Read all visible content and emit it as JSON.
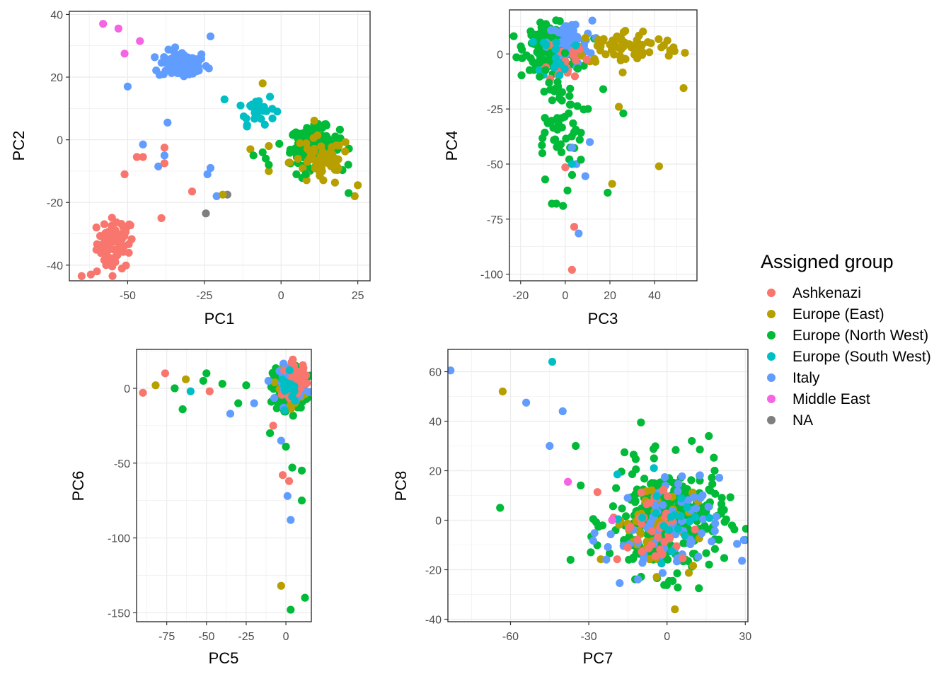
{
  "chart_data": [
    {
      "type": "scatter",
      "xlabel": "PC1",
      "ylabel": "PC2",
      "xlim": [
        -69,
        29
      ],
      "ylim": [
        -45,
        41
      ],
      "xticks": [
        -50,
        -25,
        0,
        25
      ],
      "yticks": [
        -40,
        -20,
        0,
        20,
        40
      ],
      "grid": true,
      "clusters": [
        {
          "group": "Ashkenazi",
          "cx": -54,
          "cy": -33,
          "sx": 3,
          "sy": 4,
          "n": 70
        },
        {
          "group": "Italy",
          "cx": -32,
          "cy": 24,
          "sx": 4,
          "sy": 2.2,
          "n": 90
        },
        {
          "group": "Europe (South West)",
          "cx": -8,
          "cy": 10,
          "sx": 3,
          "sy": 2.5,
          "n": 30
        },
        {
          "group": "Europe (North West)",
          "cx": 11,
          "cy": -2,
          "sx": 4,
          "sy": 3,
          "n": 160
        },
        {
          "group": "Europe (East)",
          "cx": 13,
          "cy": -7,
          "sx": 5,
          "sy": 4,
          "n": 60
        }
      ],
      "points": [
        {
          "group": "Middle East",
          "x": -58,
          "y": 37
        },
        {
          "group": "Middle East",
          "x": -53,
          "y": 35.5
        },
        {
          "group": "Middle East",
          "x": -46,
          "y": 31.5
        },
        {
          "group": "Middle East",
          "x": -51,
          "y": 27.5
        },
        {
          "group": "Italy",
          "x": -50,
          "y": 17
        },
        {
          "group": "Italy",
          "x": -37,
          "y": 5.5
        },
        {
          "group": "Italy",
          "x": -45,
          "y": -1.5
        },
        {
          "group": "Italy",
          "x": -40,
          "y": -8.5
        },
        {
          "group": "Italy",
          "x": -38,
          "y": -5
        },
        {
          "group": "Italy",
          "x": -23,
          "y": -9
        },
        {
          "group": "Italy",
          "x": -24,
          "y": -11
        },
        {
          "group": "Italy",
          "x": -21,
          "y": -18
        },
        {
          "group": "Italy",
          "x": -23,
          "y": 33
        },
        {
          "group": "Ashkenazi",
          "x": -47,
          "y": -5.5
        },
        {
          "group": "Ashkenazi",
          "x": -45,
          "y": -5.5
        },
        {
          "group": "Ashkenazi",
          "x": -38,
          "y": -2.5
        },
        {
          "group": "Ashkenazi",
          "x": -38,
          "y": -7.5
        },
        {
          "group": "Ashkenazi",
          "x": -51,
          "y": -11
        },
        {
          "group": "Ashkenazi",
          "x": -39,
          "y": -25
        },
        {
          "group": "Ashkenazi",
          "x": -29,
          "y": -16.5
        },
        {
          "group": "Ashkenazi",
          "x": -65,
          "y": -43.5
        },
        {
          "group": "Ashkenazi",
          "x": -62,
          "y": -43
        },
        {
          "group": "Ashkenazi",
          "x": -60,
          "y": -42
        },
        {
          "group": "Ashkenazi",
          "x": -57,
          "y": -40
        },
        {
          "group": "NA",
          "x": -17.5,
          "y": -17.5
        },
        {
          "group": "NA",
          "x": -24.5,
          "y": -23.5
        },
        {
          "group": "Europe (East)",
          "x": -19,
          "y": -17.5
        },
        {
          "group": "Europe (East)",
          "x": -6,
          "y": 18
        },
        {
          "group": "Europe (East)",
          "x": -10,
          "y": -3
        },
        {
          "group": "Europe (East)",
          "x": -4,
          "y": -2
        },
        {
          "group": "Europe (East)",
          "x": -4,
          "y": -10
        },
        {
          "group": "Europe (East)",
          "x": 24,
          "y": -18
        },
        {
          "group": "Europe (East)",
          "x": 25,
          "y": -14.5
        },
        {
          "group": "Europe (North West)",
          "x": -9,
          "y": -5
        },
        {
          "group": "Europe (North West)",
          "x": -6,
          "y": -4
        },
        {
          "group": "Europe (North West)",
          "x": -5,
          "y": -6
        },
        {
          "group": "Europe (North West)",
          "x": -4,
          "y": -8
        },
        {
          "group": "Europe (North West)",
          "x": 5,
          "y": -11
        },
        {
          "group": "Europe (North West)",
          "x": 8,
          "y": -11
        },
        {
          "group": "Europe (North West)",
          "x": 22,
          "y": -17
        }
      ]
    },
    {
      "type": "scatter",
      "xlabel": "PC3",
      "ylabel": "PC4",
      "xlim": [
        -25,
        59
      ],
      "ylim": [
        -103,
        20
      ],
      "xticks": [
        -20,
        0,
        20,
        40
      ],
      "yticks": [
        -100,
        -75,
        -50,
        -25,
        0
      ],
      "grid": true,
      "clusters": [
        {
          "group": "Europe (North West)",
          "cx": -6,
          "cy": 3,
          "sx": 6,
          "sy": 5,
          "n": 150
        },
        {
          "group": "Italy",
          "cx": 2,
          "cy": 5,
          "sx": 5,
          "sy": 5,
          "n": 50
        },
        {
          "group": "Europe (East)",
          "cx": 28,
          "cy": 3,
          "sx": 12,
          "sy": 4,
          "n": 80
        },
        {
          "group": "Ashkenazi",
          "cx": 0,
          "cy": -3,
          "sx": 4,
          "sy": 5,
          "n": 20
        },
        {
          "group": "Europe (South West)",
          "cx": -4,
          "cy": 0,
          "sx": 4,
          "sy": 5,
          "n": 15
        },
        {
          "group": "Europe (North West)",
          "cx": -4,
          "cy": -30,
          "sx": 6,
          "sy": 13,
          "n": 55
        }
      ],
      "points": [
        {
          "group": "Ashkenazi",
          "x": 0,
          "y": -51.5
        },
        {
          "group": "Ashkenazi",
          "x": 4,
          "y": -78.5
        },
        {
          "group": "Ashkenazi",
          "x": 3,
          "y": -98
        },
        {
          "group": "Italy",
          "x": 6,
          "y": -81.5
        },
        {
          "group": "Italy",
          "x": 3,
          "y": -42.5
        },
        {
          "group": "Italy",
          "x": 11,
          "y": -40
        },
        {
          "group": "Italy",
          "x": 9,
          "y": -55.5
        },
        {
          "group": "Italy",
          "x": 5,
          "y": -50
        },
        {
          "group": "Europe (South West)",
          "x": 3,
          "y": -50
        },
        {
          "group": "Europe (East)",
          "x": 42,
          "y": -51
        },
        {
          "group": "Europe (East)",
          "x": 53,
          "y": -15.5
        },
        {
          "group": "Europe (East)",
          "x": 21,
          "y": -59
        },
        {
          "group": "Europe (East)",
          "x": 24,
          "y": -24
        },
        {
          "group": "Europe (North West)",
          "x": 19,
          "y": -63
        },
        {
          "group": "Europe (North West)",
          "x": 26,
          "y": -27
        },
        {
          "group": "Europe (North West)",
          "x": -6,
          "y": -68
        },
        {
          "group": "Europe (North West)",
          "x": -4,
          "y": -68
        },
        {
          "group": "Europe (North West)",
          "x": -1,
          "y": -69
        },
        {
          "group": "Europe (North West)",
          "x": -9,
          "y": -57
        },
        {
          "group": "Europe (North West)",
          "x": 1,
          "y": -62
        },
        {
          "group": "Europe (North West)",
          "x": 7,
          "y": -48
        },
        {
          "group": "Europe (North West)",
          "x": 17,
          "y": -16
        }
      ]
    },
    {
      "type": "scatter",
      "xlabel": "PC5",
      "ylabel": "PC6",
      "xlim": [
        -94,
        16
      ],
      "ylim": [
        -156,
        26
      ],
      "xticks": [
        -75,
        -50,
        -25,
        0
      ],
      "yticks": [
        -150,
        -100,
        -50,
        0
      ],
      "grid": true,
      "clusters": [
        {
          "group": "Europe (North West)",
          "cx": 2,
          "cy": 0,
          "sx": 5,
          "sy": 7,
          "n": 200
        },
        {
          "group": "Europe (East)",
          "cx": 5,
          "cy": 2,
          "sx": 4,
          "sy": 5,
          "n": 60
        },
        {
          "group": "Italy",
          "cx": 4,
          "cy": 4,
          "sx": 4,
          "sy": 6,
          "n": 50
        },
        {
          "group": "Ashkenazi",
          "cx": 6,
          "cy": 6,
          "sx": 4,
          "sy": 6,
          "n": 30
        },
        {
          "group": "Europe (South West)",
          "cx": 3,
          "cy": 0,
          "sx": 3,
          "sy": 5,
          "n": 15
        }
      ],
      "points": [
        {
          "group": "Ashkenazi",
          "x": -90,
          "y": -3
        },
        {
          "group": "Ashkenazi",
          "x": -76,
          "y": 10
        },
        {
          "group": "Ashkenazi",
          "x": -48,
          "y": -2
        },
        {
          "group": "Ashkenazi",
          "x": -8,
          "y": -25
        },
        {
          "group": "Ashkenazi",
          "x": -2,
          "y": -58
        },
        {
          "group": "Ashkenazi",
          "x": 2,
          "y": -62
        },
        {
          "group": "Europe (East)",
          "x": -82,
          "y": 2
        },
        {
          "group": "Europe (East)",
          "x": -63,
          "y": 6
        },
        {
          "group": "Europe (East)",
          "x": -3,
          "y": -132
        },
        {
          "group": "Europe (North West)",
          "x": -70,
          "y": 0
        },
        {
          "group": "Europe (North West)",
          "x": -65,
          "y": -14
        },
        {
          "group": "Europe (North West)",
          "x": -52,
          "y": 5
        },
        {
          "group": "Europe (North West)",
          "x": -50,
          "y": 10
        },
        {
          "group": "Europe (North West)",
          "x": -40,
          "y": 3
        },
        {
          "group": "Europe (North West)",
          "x": -30,
          "y": -10
        },
        {
          "group": "Europe (North West)",
          "x": -25,
          "y": 2
        },
        {
          "group": "Europe (North West)",
          "x": -10,
          "y": -30
        },
        {
          "group": "Europe (North West)",
          "x": 0,
          "y": -39
        },
        {
          "group": "Europe (North West)",
          "x": 4,
          "y": -53
        },
        {
          "group": "Europe (North West)",
          "x": 10,
          "y": -55
        },
        {
          "group": "Europe (North West)",
          "x": 10,
          "y": -75
        },
        {
          "group": "Europe (North West)",
          "x": 12,
          "y": -140
        },
        {
          "group": "Europe (North West)",
          "x": 3,
          "y": -148
        },
        {
          "group": "Italy",
          "x": -35,
          "y": -17
        },
        {
          "group": "Italy",
          "x": -20,
          "y": -10
        },
        {
          "group": "Italy",
          "x": -3,
          "y": -35
        },
        {
          "group": "Italy",
          "x": 1,
          "y": -72
        },
        {
          "group": "Italy",
          "x": 3,
          "y": -88
        },
        {
          "group": "Europe (South West)",
          "x": -60,
          "y": -2
        }
      ]
    },
    {
      "type": "scatter",
      "xlabel": "PC7",
      "ylabel": "PC8",
      "xlim": [
        -84,
        31
      ],
      "ylim": [
        -41,
        69
      ],
      "xticks": [
        -60,
        -30,
        0,
        30
      ],
      "yticks": [
        -40,
        -20,
        0,
        20,
        40,
        60
      ],
      "grid": true,
      "clusters": [
        {
          "group": "Europe (North West)",
          "cx": 0,
          "cy": 0,
          "sx": 11,
          "sy": 11,
          "n": 300
        },
        {
          "group": "Europe (East)",
          "cx": -5,
          "cy": -2,
          "sx": 8,
          "sy": 9,
          "n": 60
        },
        {
          "group": "Italy",
          "cx": -2,
          "cy": -5,
          "sx": 11,
          "sy": 11,
          "n": 70
        },
        {
          "group": "Ashkenazi",
          "cx": -6,
          "cy": -3,
          "sx": 8,
          "sy": 9,
          "n": 40
        },
        {
          "group": "Europe (South West)",
          "cx": 3,
          "cy": 2,
          "sx": 9,
          "sy": 9,
          "n": 20
        }
      ],
      "points": [
        {
          "group": "Italy",
          "x": -83,
          "y": 60.5
        },
        {
          "group": "Europe (South West)",
          "x": -44,
          "y": 64
        },
        {
          "group": "Europe (East)",
          "x": -63,
          "y": 52
        },
        {
          "group": "Italy",
          "x": -54,
          "y": 47.5
        },
        {
          "group": "Italy",
          "x": -40,
          "y": 44
        },
        {
          "group": "Italy",
          "x": -45,
          "y": 30
        },
        {
          "group": "Europe (North West)",
          "x": -64,
          "y": 5
        },
        {
          "group": "Europe (North West)",
          "x": -37,
          "y": -16
        },
        {
          "group": "Middle East",
          "x": -38,
          "y": 15.5
        },
        {
          "group": "Middle East",
          "x": -21,
          "y": 0
        },
        {
          "group": "Europe (East)",
          "x": 3,
          "y": -36
        },
        {
          "group": "Europe (North West)",
          "x": -35,
          "y": 30
        },
        {
          "group": "Europe (North West)",
          "x": -10,
          "y": 39.5
        },
        {
          "group": "Europe (North West)",
          "x": -5,
          "y": 25
        },
        {
          "group": "Europe (North West)",
          "x": 16,
          "y": 34
        }
      ]
    }
  ],
  "legend": {
    "title": "Assigned group",
    "items": [
      {
        "label": "Ashkenazi",
        "color": "#F8766D"
      },
      {
        "label": "Europe (East)",
        "color": "#B79F00"
      },
      {
        "label": "Europe (North West)",
        "color": "#00BA38"
      },
      {
        "label": "Europe (South West)",
        "color": "#00BFC4"
      },
      {
        "label": "Italy",
        "color": "#619CFF"
      },
      {
        "label": "Middle East",
        "color": "#F564E3"
      },
      {
        "label": "NA",
        "color": "#7F7F7F"
      }
    ]
  }
}
